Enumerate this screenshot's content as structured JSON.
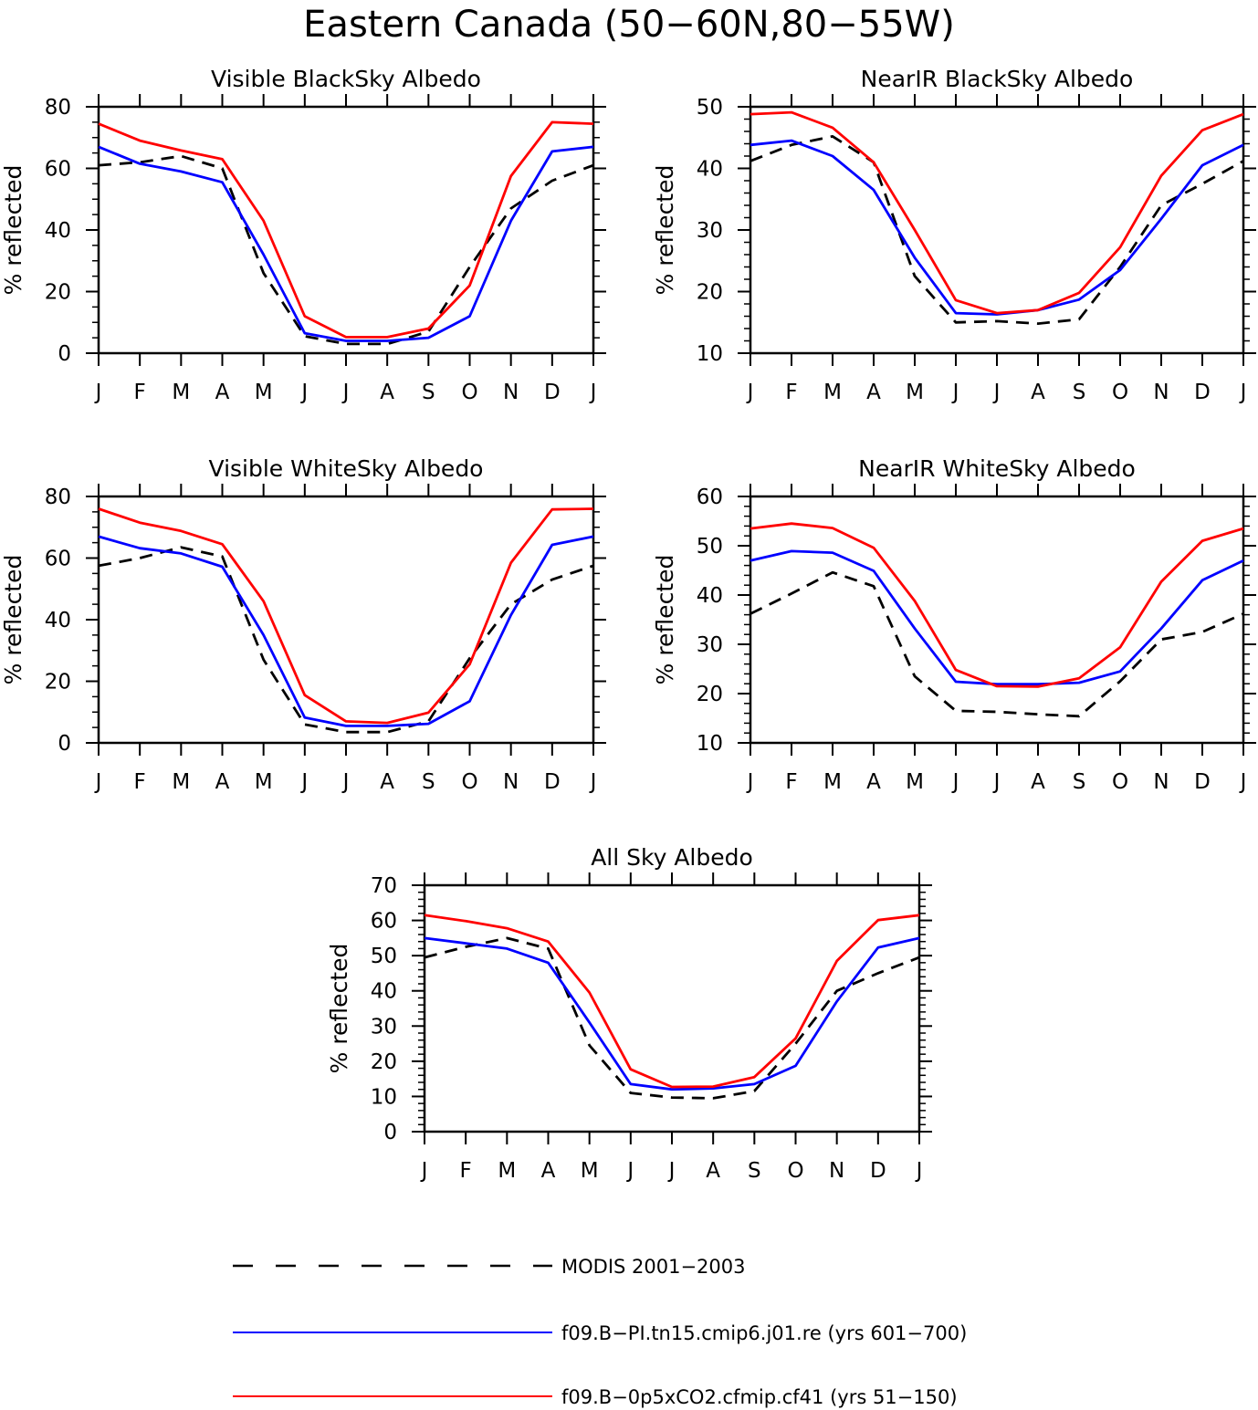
{
  "figure": {
    "title": "Eastern Canada (50−60N,80−55W)"
  },
  "legend": {
    "entries": [
      {
        "label": "MODIS 2001−2003",
        "color": "#000000",
        "style": "dashed"
      },
      {
        "label": "f09.B−PI.tn15.cmip6.j01.re (yrs 601−700)",
        "color": "#0000ff",
        "style": "solid"
      },
      {
        "label": "f09.B−0p5xCO2.cfmip.cf41 (yrs 51−150)",
        "color": "#ff0000",
        "style": "solid"
      }
    ]
  },
  "chart_data": [
    {
      "type": "line",
      "title": "Visible BlackSky Albedo",
      "ylabel": "% reflected",
      "xlabel": "",
      "categories": [
        "J",
        "F",
        "M",
        "A",
        "M",
        "J",
        "J",
        "A",
        "S",
        "O",
        "N",
        "D",
        "J"
      ],
      "ylim": [
        0,
        80
      ],
      "yticks": [
        0,
        20,
        40,
        60,
        80
      ],
      "yminor": 5,
      "grid": false,
      "series": [
        {
          "values": [
            61,
            62,
            64,
            60,
            26,
            5.5,
            3,
            3,
            7,
            28,
            47,
            56,
            61
          ],
          "color": "#000000",
          "style": "dashed"
        },
        {
          "values": [
            67,
            61.5,
            59,
            55.5,
            32,
            6.5,
            4,
            4,
            5,
            12,
            43,
            65.5,
            67
          ],
          "color": "#0000ff",
          "style": "solid"
        },
        {
          "values": [
            74.5,
            69,
            65.8,
            63,
            43,
            12,
            5.2,
            5.2,
            8,
            22,
            57.5,
            75,
            74.5
          ],
          "color": "#ff0000",
          "style": "solid"
        }
      ]
    },
    {
      "type": "line",
      "title": "NearIR BlackSky Albedo",
      "ylabel": "% reflected",
      "xlabel": "",
      "categories": [
        "J",
        "F",
        "M",
        "A",
        "M",
        "J",
        "J",
        "A",
        "S",
        "O",
        "N",
        "D",
        "J"
      ],
      "ylim": [
        10,
        50
      ],
      "yticks": [
        10,
        20,
        30,
        40,
        50
      ],
      "yminor": 2,
      "grid": false,
      "series": [
        {
          "values": [
            41.2,
            43.8,
            45.2,
            41,
            22.5,
            15,
            15.2,
            14.8,
            15.5,
            24,
            34,
            37.5,
            41.2
          ],
          "color": "#000000",
          "style": "dashed"
        },
        {
          "values": [
            43.8,
            44.5,
            42,
            36.5,
            25.5,
            16.5,
            16.3,
            17,
            18.7,
            23.5,
            31.8,
            40.5,
            43.8
          ],
          "color": "#0000ff",
          "style": "solid"
        },
        {
          "values": [
            48.8,
            49.1,
            46.6,
            41,
            30,
            18.6,
            16.5,
            17,
            19.8,
            27.2,
            38.8,
            46.2,
            48.8
          ],
          "color": "#ff0000",
          "style": "solid"
        }
      ]
    },
    {
      "type": "line",
      "title": "Visible WhiteSky Albedo",
      "ylabel": "% reflected",
      "xlabel": "",
      "categories": [
        "J",
        "F",
        "M",
        "A",
        "M",
        "J",
        "J",
        "A",
        "S",
        "O",
        "N",
        "D",
        "J"
      ],
      "ylim": [
        0,
        80
      ],
      "yticks": [
        0,
        20,
        40,
        60,
        80
      ],
      "yminor": 5,
      "grid": false,
      "series": [
        {
          "values": [
            57.5,
            60,
            63.5,
            60.5,
            27,
            6,
            3.5,
            3.5,
            7,
            27.5,
            45,
            53,
            57.5
          ],
          "color": "#000000",
          "style": "dashed"
        },
        {
          "values": [
            67,
            63.2,
            61.5,
            57.2,
            35,
            8.2,
            5.5,
            5.5,
            6.2,
            13.5,
            41.5,
            64.3,
            67
          ],
          "color": "#0000ff",
          "style": "solid"
        },
        {
          "values": [
            76,
            71.5,
            68.8,
            64.5,
            46,
            15.5,
            7,
            6.5,
            9.8,
            25.5,
            58.5,
            75.8,
            76
          ],
          "color": "#ff0000",
          "style": "solid"
        }
      ]
    },
    {
      "type": "line",
      "title": "NearIR WhiteSky Albedo",
      "ylabel": "% reflected",
      "xlabel": "",
      "categories": [
        "J",
        "F",
        "M",
        "A",
        "M",
        "J",
        "J",
        "A",
        "S",
        "O",
        "N",
        "D",
        "J"
      ],
      "ylim": [
        10,
        60
      ],
      "yticks": [
        10,
        20,
        30,
        40,
        50,
        60
      ],
      "yminor": 2,
      "grid": false,
      "series": [
        {
          "values": [
            36.2,
            40.3,
            44.6,
            41.8,
            23.5,
            16.5,
            16.3,
            15.8,
            15.4,
            22.5,
            31,
            32.5,
            36.2
          ],
          "color": "#000000",
          "style": "dashed"
        },
        {
          "values": [
            47,
            48.9,
            48.6,
            44.9,
            33.2,
            22.4,
            21.9,
            21.9,
            22.2,
            24.5,
            33.2,
            43,
            47
          ],
          "color": "#0000ff",
          "style": "solid"
        },
        {
          "values": [
            53.5,
            54.5,
            53.6,
            49.6,
            38.8,
            24.8,
            21.5,
            21.4,
            23.1,
            29.4,
            42.7,
            51,
            53.5
          ],
          "color": "#ff0000",
          "style": "solid"
        }
      ]
    },
    {
      "type": "line",
      "title": "All Sky Albedo",
      "ylabel": "% reflected",
      "xlabel": "",
      "categories": [
        "J",
        "F",
        "M",
        "A",
        "M",
        "J",
        "J",
        "A",
        "S",
        "O",
        "N",
        "D",
        "J"
      ],
      "ylim": [
        0,
        70
      ],
      "yticks": [
        0,
        10,
        20,
        30,
        40,
        50,
        60,
        70
      ],
      "yminor": 2,
      "grid": false,
      "series": [
        {
          "values": [
            49.5,
            52.5,
            55,
            52,
            24.5,
            11,
            9.7,
            9.5,
            11.5,
            25,
            40,
            45,
            49.5
          ],
          "color": "#000000",
          "style": "dashed"
        },
        {
          "values": [
            55,
            53.5,
            52,
            48,
            31,
            13.5,
            12,
            12.3,
            13.5,
            18.7,
            37,
            52.3,
            55
          ],
          "color": "#0000ff",
          "style": "solid"
        },
        {
          "values": [
            61.5,
            59.8,
            57.8,
            54,
            39.5,
            17.7,
            12.7,
            12.8,
            15.5,
            26.5,
            48.5,
            60.1,
            61.5
          ],
          "color": "#ff0000",
          "style": "solid"
        }
      ]
    }
  ]
}
